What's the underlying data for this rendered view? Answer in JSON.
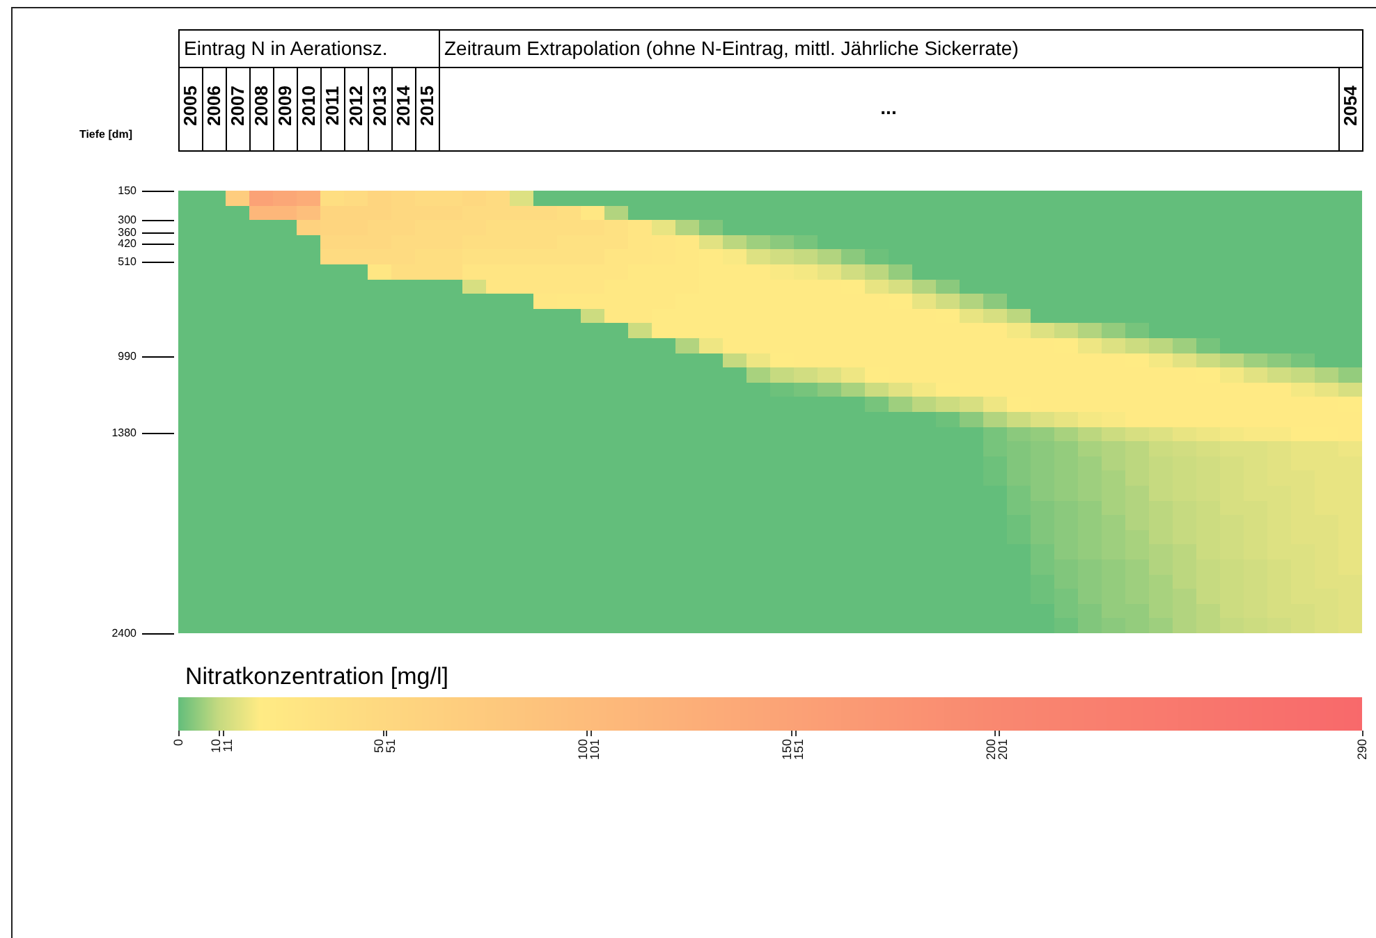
{
  "chart_data": {
    "type": "heatmap",
    "ylabel": "Tiefe [dm]",
    "clabel": "Nitratkonzentration [mg/l]",
    "annotations": [
      "Eintrag N in Aerationsz.",
      "Zeitraum Extrapolation (ohne N-Eintrag, mittl. Jährliche Sickerrate)",
      "..."
    ],
    "categories": [
      "2005",
      "2006",
      "2007",
      "2008",
      "2009",
      "2010",
      "2011",
      "2012",
      "2013",
      "2014",
      "2015",
      null,
      null,
      null,
      null,
      null,
      null,
      null,
      null,
      null,
      null,
      null,
      null,
      null,
      null,
      null,
      null,
      null,
      null,
      null,
      null,
      null,
      null,
      null,
      null,
      null,
      null,
      null,
      null,
      null,
      null,
      null,
      null,
      null,
      null,
      null,
      null,
      null,
      null,
      "2054"
    ],
    "ylim": [
      2400,
      150
    ],
    "yticks": [
      150,
      300,
      360,
      420,
      510,
      990,
      1380,
      2400
    ],
    "clim": [
      0,
      290
    ],
    "cticks": [
      0,
      10,
      11,
      50,
      51,
      100,
      101,
      150,
      151,
      200,
      201,
      290
    ],
    "cells": [
      [
        0,
        0,
        70,
        150,
        140,
        130,
        40,
        45,
        55,
        50,
        45,
        45,
        50,
        45,
        14,
        0,
        0,
        0,
        0,
        0,
        0,
        0,
        0,
        0,
        0,
        0,
        0,
        0,
        0,
        0,
        0,
        0,
        0,
        0,
        0,
        0,
        0,
        0,
        0,
        0,
        0,
        0,
        0,
        0,
        0,
        0,
        0,
        0,
        0,
        0
      ],
      [
        0,
        0,
        0,
        110,
        110,
        95,
        55,
        55,
        55,
        50,
        50,
        50,
        45,
        45,
        45,
        45,
        40,
        27,
        8,
        0,
        0,
        0,
        0,
        0,
        0,
        0,
        0,
        0,
        0,
        0,
        0,
        0,
        0,
        0,
        0,
        0,
        0,
        0,
        0,
        0,
        0,
        0,
        0,
        0,
        0,
        0,
        0,
        0,
        0,
        0
      ],
      [
        0,
        0,
        0,
        0,
        0,
        60,
        55,
        55,
        50,
        50,
        45,
        45,
        45,
        40,
        40,
        40,
        40,
        40,
        35,
        30,
        16,
        8,
        3,
        0,
        0,
        0,
        0,
        0,
        0,
        0,
        0,
        0,
        0,
        0,
        0,
        0,
        0,
        0,
        0,
        0,
        0,
        0,
        0,
        0,
        0,
        0,
        0,
        0,
        0,
        0
      ],
      [
        0,
        0,
        0,
        0,
        0,
        0,
        50,
        50,
        50,
        45,
        45,
        45,
        40,
        40,
        40,
        40,
        35,
        35,
        35,
        30,
        28,
        25,
        15,
        9,
        6,
        4,
        2,
        0,
        0,
        0,
        0,
        0,
        0,
        0,
        0,
        0,
        0,
        0,
        0,
        0,
        0,
        0,
        0,
        0,
        0,
        0,
        0,
        0,
        0,
        0
      ],
      [
        0,
        0,
        0,
        0,
        0,
        0,
        45,
        45,
        45,
        45,
        40,
        40,
        35,
        35,
        35,
        35,
        35,
        35,
        30,
        30,
        28,
        25,
        22,
        19,
        14,
        12,
        10,
        8,
        4,
        1,
        0,
        0,
        0,
        0,
        0,
        0,
        0,
        0,
        0,
        0,
        0,
        0,
        0,
        0,
        0,
        0,
        0,
        0,
        0,
        0
      ],
      [
        0,
        0,
        0,
        0,
        0,
        0,
        0,
        0,
        28,
        40,
        40,
        40,
        30,
        30,
        30,
        30,
        30,
        30,
        30,
        25,
        25,
        25,
        22,
        22,
        22,
        19,
        18,
        16,
        12,
        9,
        5,
        0,
        0,
        0,
        0,
        0,
        0,
        0,
        0,
        0,
        0,
        0,
        0,
        0,
        0,
        0,
        0,
        0,
        0,
        0
      ],
      [
        0,
        0,
        0,
        0,
        0,
        0,
        0,
        0,
        0,
        0,
        0,
        0,
        13,
        28,
        30,
        30,
        30,
        30,
        25,
        25,
        25,
        25,
        22,
        22,
        22,
        22,
        22,
        22,
        20,
        16,
        13,
        8,
        4,
        0,
        0,
        0,
        0,
        0,
        0,
        0,
        0,
        0,
        0,
        0,
        0,
        0,
        0,
        0,
        0,
        0
      ],
      [
        0,
        0,
        0,
        0,
        0,
        0,
        0,
        0,
        0,
        0,
        0,
        0,
        0,
        0,
        0,
        26,
        25,
        25,
        25,
        25,
        25,
        22,
        22,
        22,
        22,
        22,
        22,
        22,
        22,
        22,
        20,
        16,
        12,
        8,
        4,
        0,
        0,
        0,
        0,
        0,
        0,
        0,
        0,
        0,
        0,
        0,
        0,
        0,
        0,
        0
      ],
      [
        0,
        0,
        0,
        0,
        0,
        0,
        0,
        0,
        0,
        0,
        0,
        0,
        0,
        0,
        0,
        0,
        0,
        11,
        25,
        25,
        22,
        22,
        22,
        22,
        22,
        22,
        22,
        22,
        22,
        22,
        22,
        22,
        20,
        16,
        13,
        9,
        0,
        0,
        0,
        0,
        0,
        0,
        0,
        0,
        0,
        0,
        0,
        0,
        0,
        0
      ],
      [
        0,
        0,
        0,
        0,
        0,
        0,
        0,
        0,
        0,
        0,
        0,
        0,
        0,
        0,
        0,
        0,
        0,
        0,
        0,
        11,
        22,
        22,
        22,
        22,
        22,
        22,
        22,
        22,
        22,
        22,
        22,
        22,
        22,
        22,
        21,
        18,
        14,
        11,
        8,
        5,
        2,
        0,
        0,
        0,
        0,
        0,
        0,
        0,
        0,
        0
      ],
      [
        0,
        0,
        0,
        0,
        0,
        0,
        0,
        0,
        0,
        0,
        0,
        0,
        0,
        0,
        0,
        0,
        0,
        0,
        0,
        0,
        0,
        8,
        17,
        22,
        22,
        22,
        22,
        22,
        22,
        22,
        22,
        22,
        22,
        22,
        22,
        22,
        22,
        20,
        17,
        14,
        11,
        9,
        6,
        2,
        0,
        0,
        0,
        0,
        0,
        0
      ],
      [
        0,
        0,
        0,
        0,
        0,
        0,
        0,
        0,
        0,
        0,
        0,
        0,
        0,
        0,
        0,
        0,
        0,
        0,
        0,
        0,
        0,
        0,
        0,
        10,
        17,
        20,
        22,
        22,
        22,
        22,
        22,
        22,
        22,
        22,
        22,
        22,
        22,
        22,
        22,
        22,
        20,
        18,
        15,
        11,
        9,
        6,
        4,
        2,
        0,
        0
      ],
      [
        0,
        0,
        0,
        0,
        0,
        0,
        0,
        0,
        0,
        0,
        0,
        0,
        0,
        0,
        0,
        0,
        0,
        0,
        0,
        0,
        0,
        0,
        0,
        0,
        7,
        10,
        12,
        14,
        17,
        20,
        22,
        22,
        22,
        22,
        22,
        22,
        22,
        22,
        22,
        22,
        22,
        22,
        22,
        20,
        18,
        15,
        12,
        10,
        8,
        5
      ],
      [
        0,
        0,
        0,
        0,
        0,
        0,
        0,
        0,
        0,
        0,
        0,
        0,
        0,
        0,
        0,
        0,
        0,
        0,
        0,
        0,
        0,
        0,
        0,
        0,
        0,
        1,
        2,
        4,
        7,
        11,
        15,
        18,
        20,
        22,
        22,
        22,
        22,
        22,
        22,
        22,
        22,
        22,
        22,
        22,
        22,
        22,
        21,
        18,
        16,
        13
      ],
      [
        0,
        0,
        0,
        0,
        0,
        0,
        0,
        0,
        0,
        0,
        0,
        0,
        0,
        0,
        0,
        0,
        0,
        0,
        0,
        0,
        0,
        0,
        0,
        0,
        0,
        0,
        0,
        0,
        0,
        2,
        6,
        9,
        11,
        13,
        17,
        20,
        22,
        22,
        22,
        22,
        22,
        22,
        22,
        22,
        22,
        22,
        22,
        22,
        22,
        20
      ],
      [
        0,
        0,
        0,
        0,
        0,
        0,
        0,
        0,
        0,
        0,
        0,
        0,
        0,
        0,
        0,
        0,
        0,
        0,
        0,
        0,
        0,
        0,
        0,
        0,
        0,
        0,
        0,
        0,
        0,
        0,
        0,
        0,
        1,
        4,
        8,
        11,
        14,
        16,
        18,
        19,
        21,
        22,
        22,
        22,
        22,
        22,
        22,
        22,
        22,
        22
      ],
      [
        0,
        0,
        0,
        0,
        0,
        0,
        0,
        0,
        0,
        0,
        0,
        0,
        0,
        0,
        0,
        0,
        0,
        0,
        0,
        0,
        0,
        0,
        0,
        0,
        0,
        0,
        0,
        0,
        0,
        0,
        0,
        0,
        0,
        0,
        2,
        4,
        5,
        7,
        9,
        11,
        13,
        14,
        16,
        17,
        18,
        19,
        19,
        20,
        20,
        21
      ],
      [
        0,
        0,
        0,
        0,
        0,
        0,
        0,
        0,
        0,
        0,
        0,
        0,
        0,
        0,
        0,
        0,
        0,
        0,
        0,
        0,
        0,
        0,
        0,
        0,
        0,
        0,
        0,
        0,
        0,
        0,
        0,
        0,
        0,
        0,
        2,
        3,
        4,
        5,
        7,
        8,
        9,
        11,
        12,
        13,
        14,
        14,
        15,
        16,
        16,
        17
      ],
      [
        0,
        0,
        0,
        0,
        0,
        0,
        0,
        0,
        0,
        0,
        0,
        0,
        0,
        0,
        0,
        0,
        0,
        0,
        0,
        0,
        0,
        0,
        0,
        0,
        0,
        0,
        0,
        0,
        0,
        0,
        0,
        0,
        0,
        0,
        1,
        3,
        4,
        5,
        6,
        8,
        9,
        10,
        11,
        12,
        13,
        14,
        15,
        16,
        16,
        16
      ],
      [
        0,
        0,
        0,
        0,
        0,
        0,
        0,
        0,
        0,
        0,
        0,
        0,
        0,
        0,
        0,
        0,
        0,
        0,
        0,
        0,
        0,
        0,
        0,
        0,
        0,
        0,
        0,
        0,
        0,
        0,
        0,
        0,
        0,
        0,
        1,
        3,
        4,
        5,
        6,
        7,
        9,
        10,
        11,
        12,
        13,
        14,
        15,
        15,
        16,
        16
      ],
      [
        0,
        0,
        0,
        0,
        0,
        0,
        0,
        0,
        0,
        0,
        0,
        0,
        0,
        0,
        0,
        0,
        0,
        0,
        0,
        0,
        0,
        0,
        0,
        0,
        0,
        0,
        0,
        0,
        0,
        0,
        0,
        0,
        0,
        0,
        0,
        2,
        4,
        5,
        6,
        7,
        8,
        10,
        11,
        12,
        13,
        14,
        14,
        15,
        16,
        16
      ],
      [
        0,
        0,
        0,
        0,
        0,
        0,
        0,
        0,
        0,
        0,
        0,
        0,
        0,
        0,
        0,
        0,
        0,
        0,
        0,
        0,
        0,
        0,
        0,
        0,
        0,
        0,
        0,
        0,
        0,
        0,
        0,
        0,
        0,
        0,
        0,
        2,
        3,
        4,
        5,
        7,
        8,
        9,
        10,
        11,
        13,
        13,
        14,
        15,
        16,
        16
      ],
      [
        0,
        0,
        0,
        0,
        0,
        0,
        0,
        0,
        0,
        0,
        0,
        0,
        0,
        0,
        0,
        0,
        0,
        0,
        0,
        0,
        0,
        0,
        0,
        0,
        0,
        0,
        0,
        0,
        0,
        0,
        0,
        0,
        0,
        0,
        0,
        1,
        3,
        4,
        5,
        6,
        8,
        9,
        10,
        11,
        12,
        13,
        14,
        15,
        15,
        16
      ],
      [
        0,
        0,
        0,
        0,
        0,
        0,
        0,
        0,
        0,
        0,
        0,
        0,
        0,
        0,
        0,
        0,
        0,
        0,
        0,
        0,
        0,
        0,
        0,
        0,
        0,
        0,
        0,
        0,
        0,
        0,
        0,
        0,
        0,
        0,
        0,
        1,
        3,
        4,
        5,
        6,
        7,
        9,
        10,
        11,
        12,
        13,
        14,
        15,
        15,
        16
      ],
      [
        0,
        0,
        0,
        0,
        0,
        0,
        0,
        0,
        0,
        0,
        0,
        0,
        0,
        0,
        0,
        0,
        0,
        0,
        0,
        0,
        0,
        0,
        0,
        0,
        0,
        0,
        0,
        0,
        0,
        0,
        0,
        0,
        0,
        0,
        0,
        0,
        2,
        4,
        5,
        6,
        7,
        8,
        9,
        11,
        12,
        13,
        14,
        14,
        15,
        16
      ],
      [
        0,
        0,
        0,
        0,
        0,
        0,
        0,
        0,
        0,
        0,
        0,
        0,
        0,
        0,
        0,
        0,
        0,
        0,
        0,
        0,
        0,
        0,
        0,
        0,
        0,
        0,
        0,
        0,
        0,
        0,
        0,
        0,
        0,
        0,
        0,
        0,
        2,
        3,
        4,
        5,
        6,
        8,
        9,
        10,
        11,
        12,
        13,
        14,
        15,
        16
      ],
      [
        0,
        0,
        0,
        0,
        0,
        0,
        0,
        0,
        0,
        0,
        0,
        0,
        0,
        0,
        0,
        0,
        0,
        0,
        0,
        0,
        0,
        0,
        0,
        0,
        0,
        0,
        0,
        0,
        0,
        0,
        0,
        0,
        0,
        0,
        0,
        0,
        1,
        3,
        4,
        5,
        6,
        7,
        9,
        10,
        11,
        12,
        13,
        14,
        15,
        15
      ],
      [
        0,
        0,
        0,
        0,
        0,
        0,
        0,
        0,
        0,
        0,
        0,
        0,
        0,
        0,
        0,
        0,
        0,
        0,
        0,
        0,
        0,
        0,
        0,
        0,
        0,
        0,
        0,
        0,
        0,
        0,
        0,
        0,
        0,
        0,
        0,
        0,
        1,
        2,
        4,
        5,
        6,
        7,
        8,
        10,
        11,
        12,
        13,
        14,
        14,
        15
      ],
      [
        0,
        0,
        0,
        0,
        0,
        0,
        0,
        0,
        0,
        0,
        0,
        0,
        0,
        0,
        0,
        0,
        0,
        0,
        0,
        0,
        0,
        0,
        0,
        0,
        0,
        0,
        0,
        0,
        0,
        0,
        0,
        0,
        0,
        0,
        0,
        0,
        0,
        2,
        3,
        5,
        5,
        7,
        8,
        9,
        11,
        12,
        13,
        13,
        14,
        15
      ],
      [
        0,
        0,
        0,
        0,
        0,
        0,
        0,
        0,
        0,
        0,
        0,
        0,
        0,
        0,
        0,
        0,
        0,
        0,
        0,
        0,
        0,
        0,
        0,
        0,
        0,
        0,
        0,
        0,
        0,
        0,
        0,
        0,
        0,
        0,
        0,
        0,
        0,
        1,
        3,
        4,
        5,
        6,
        8,
        9,
        10,
        11,
        12,
        13,
        14,
        15
      ]
    ]
  }
}
